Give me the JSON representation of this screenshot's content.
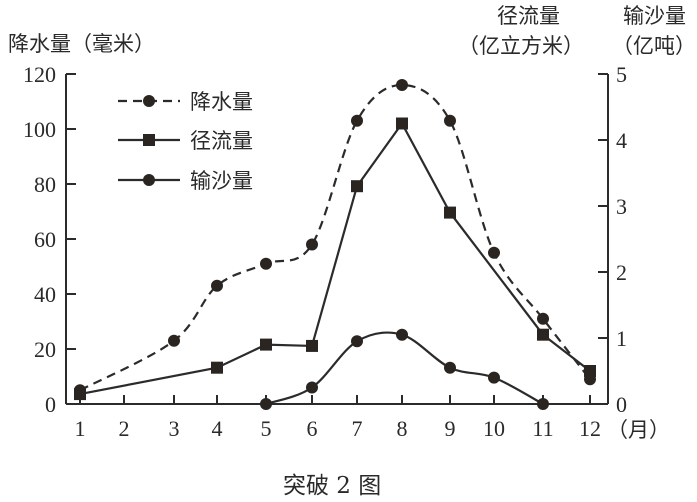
{
  "chart_data": {
    "type": "line",
    "title": "突破2图",
    "xlabel": "（月）",
    "x": [
      1,
      2,
      3,
      4,
      5,
      6,
      7,
      8,
      9,
      10,
      11,
      12
    ],
    "left_axis": {
      "label": "降水量（毫米）",
      "ylim": [
        0,
        120
      ],
      "ticks": [
        0,
        20,
        40,
        60,
        80,
        100,
        120
      ]
    },
    "right_axis": {
      "label_runoff": "径流量（亿立方米）",
      "label_sediment": "输沙量（亿吨）",
      "ylim": [
        0,
        5
      ],
      "ticks": [
        0,
        1,
        2,
        3,
        4,
        5
      ]
    },
    "series": [
      {
        "name": "降水量",
        "axis": "left",
        "style": "dashed-circle",
        "points": [
          [
            1,
            5
          ],
          [
            3,
            23
          ],
          [
            4,
            43
          ],
          [
            5,
            51
          ],
          [
            6,
            58
          ],
          [
            7,
            103
          ],
          [
            8,
            116
          ],
          [
            9,
            103
          ],
          [
            10,
            55
          ],
          [
            11,
            31
          ],
          [
            12,
            9
          ]
        ]
      },
      {
        "name": "径流量",
        "axis": "right",
        "style": "solid-square",
        "points": [
          [
            1,
            0.15
          ],
          [
            4,
            0.55
          ],
          [
            5,
            0.9
          ],
          [
            6,
            0.88
          ],
          [
            7,
            3.3
          ],
          [
            8,
            4.25
          ],
          [
            9,
            2.9
          ],
          [
            11,
            1.05
          ],
          [
            12,
            0.5
          ]
        ]
      },
      {
        "name": "输沙量",
        "axis": "right",
        "style": "solid-circle",
        "points": [
          [
            5,
            0
          ],
          [
            6,
            0.25
          ],
          [
            7,
            0.95
          ],
          [
            8,
            1.05
          ],
          [
            9,
            0.55
          ],
          [
            10,
            0.4
          ],
          [
            11,
            0
          ]
        ]
      }
    ],
    "legend_position": "upper-left-inside",
    "grid": false
  },
  "labels": {
    "left_axis_title": "降水量（毫米）",
    "runoff_title": "径流量",
    "runoff_unit": "（亿立方米）",
    "sediment_title": "输沙量",
    "sediment_unit": "（亿吨）",
    "x_unit": "（月）",
    "caption": "突破 2 图",
    "legend": [
      "降水量",
      "径流量",
      "输沙量"
    ]
  }
}
